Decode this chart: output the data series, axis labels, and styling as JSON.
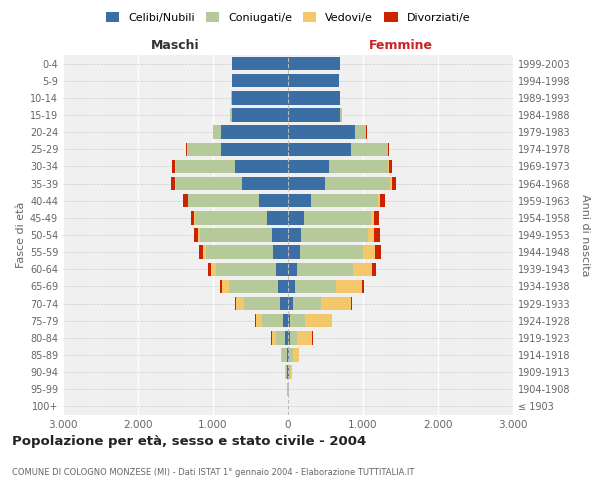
{
  "age_groups": [
    "100+",
    "95-99",
    "90-94",
    "85-89",
    "80-84",
    "75-79",
    "70-74",
    "65-69",
    "60-64",
    "55-59",
    "50-54",
    "45-49",
    "40-44",
    "35-39",
    "30-34",
    "25-29",
    "20-24",
    "15-19",
    "10-14",
    "5-9",
    "0-4"
  ],
  "birth_years": [
    "≤ 1903",
    "1904-1908",
    "1909-1913",
    "1914-1918",
    "1919-1923",
    "1924-1928",
    "1929-1933",
    "1934-1938",
    "1939-1943",
    "1944-1948",
    "1949-1953",
    "1954-1958",
    "1959-1963",
    "1964-1968",
    "1969-1973",
    "1974-1978",
    "1979-1983",
    "1984-1988",
    "1989-1993",
    "1994-1998",
    "1999-2003"
  ],
  "maschi": {
    "celibi": [
      2,
      2,
      10,
      15,
      35,
      65,
      105,
      140,
      160,
      195,
      220,
      285,
      390,
      610,
      710,
      900,
      900,
      750,
      750,
      750,
      750
    ],
    "coniugati": [
      2,
      5,
      22,
      60,
      130,
      280,
      480,
      650,
      800,
      900,
      960,
      950,
      940,
      890,
      790,
      440,
      95,
      18,
      8,
      0,
      0
    ],
    "vedovi": [
      1,
      2,
      10,
      22,
      55,
      85,
      105,
      85,
      62,
      32,
      17,
      12,
      6,
      6,
      4,
      2,
      2,
      0,
      0,
      0,
      0
    ],
    "divorziati": [
      0,
      0,
      1,
      2,
      5,
      15,
      22,
      28,
      48,
      65,
      58,
      52,
      58,
      52,
      37,
      12,
      6,
      2,
      0,
      0,
      0
    ]
  },
  "femmine": {
    "nubili": [
      2,
      3,
      8,
      15,
      20,
      30,
      60,
      90,
      120,
      160,
      175,
      215,
      305,
      495,
      545,
      840,
      895,
      695,
      690,
      675,
      695
    ],
    "coniugate": [
      2,
      5,
      20,
      48,
      98,
      195,
      375,
      545,
      745,
      845,
      895,
      895,
      895,
      870,
      790,
      490,
      145,
      22,
      8,
      0,
      0
    ],
    "vedove": [
      2,
      5,
      30,
      85,
      205,
      355,
      405,
      355,
      255,
      155,
      82,
      42,
      27,
      16,
      11,
      6,
      5,
      2,
      0,
      0,
      0
    ],
    "divorziate": [
      0,
      0,
      1,
      2,
      5,
      10,
      16,
      22,
      58,
      78,
      72,
      62,
      62,
      58,
      42,
      16,
      6,
      2,
      0,
      0,
      0
    ]
  },
  "colors": {
    "celibi": "#3A6EA5",
    "coniugati": "#B5C99A",
    "vedovi": "#F4C76A",
    "divorziati": "#CC2200"
  },
  "legend_labels": [
    "Celibi/Nubili",
    "Coniugati/e",
    "Vedovi/e",
    "Divorziati/e"
  ],
  "title": "Popolazione per età, sesso e stato civile - 2004",
  "subtitle": "COMUNE DI COLOGNO MONZESE (MI) - Dati ISTAT 1° gennaio 2004 - Elaborazione TUTTITALIA.IT",
  "label_maschi": "Maschi",
  "label_femmine": "Femmine",
  "ylabel_left": "Fasce di età",
  "ylabel_right": "Anni di nascita",
  "xlim": 3000,
  "bg_color": "#ffffff",
  "plot_bg": "#f0f0f0"
}
